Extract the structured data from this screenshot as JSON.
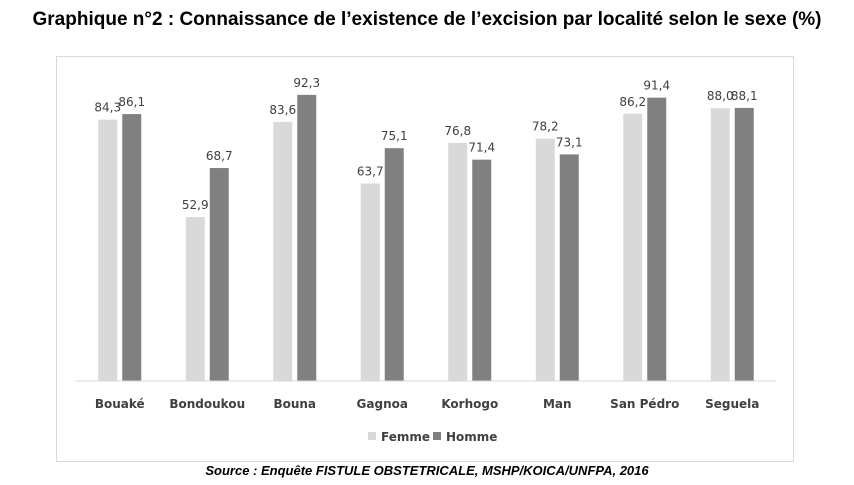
{
  "title": "Graphique n°2 : Connaissance de l’existence de l’excision par localité selon le sexe (%)",
  "source": "Source : Enquête FISTULE OBSTETRICALE, MSHP/KOICA/UNFPA, 2016",
  "chart_data": {
    "type": "bar",
    "title": "Graphique n°2 : Connaissance de l’existence de l’excision par localité selon le sexe (%)",
    "categories": [
      "Bouaké",
      "Bondoukou",
      "Bouna",
      "Gagnoa",
      "Korhogo",
      "Man",
      "San Pédro",
      "Seguela"
    ],
    "series": [
      {
        "name": "Femme",
        "color": "#d9d9d9",
        "values": [
          84.3,
          52.9,
          83.6,
          63.7,
          76.8,
          78.2,
          86.2,
          88.0
        ],
        "labels": [
          "84,3",
          "52,9",
          "83,6",
          "63,7",
          "76,8",
          "78,2",
          "86,2",
          "88,0"
        ]
      },
      {
        "name": "Homme",
        "color": "#808080",
        "values": [
          86.1,
          68.7,
          92.3,
          75.1,
          71.4,
          73.1,
          91.4,
          88.1
        ],
        "labels": [
          "86,1",
          "68,7",
          "92,3",
          "75,1",
          "71,4",
          "73,1",
          "91,4",
          "88,1"
        ]
      }
    ],
    "ylim": [
      0,
      100
    ],
    "grid": false,
    "legend": "bottom-center"
  }
}
